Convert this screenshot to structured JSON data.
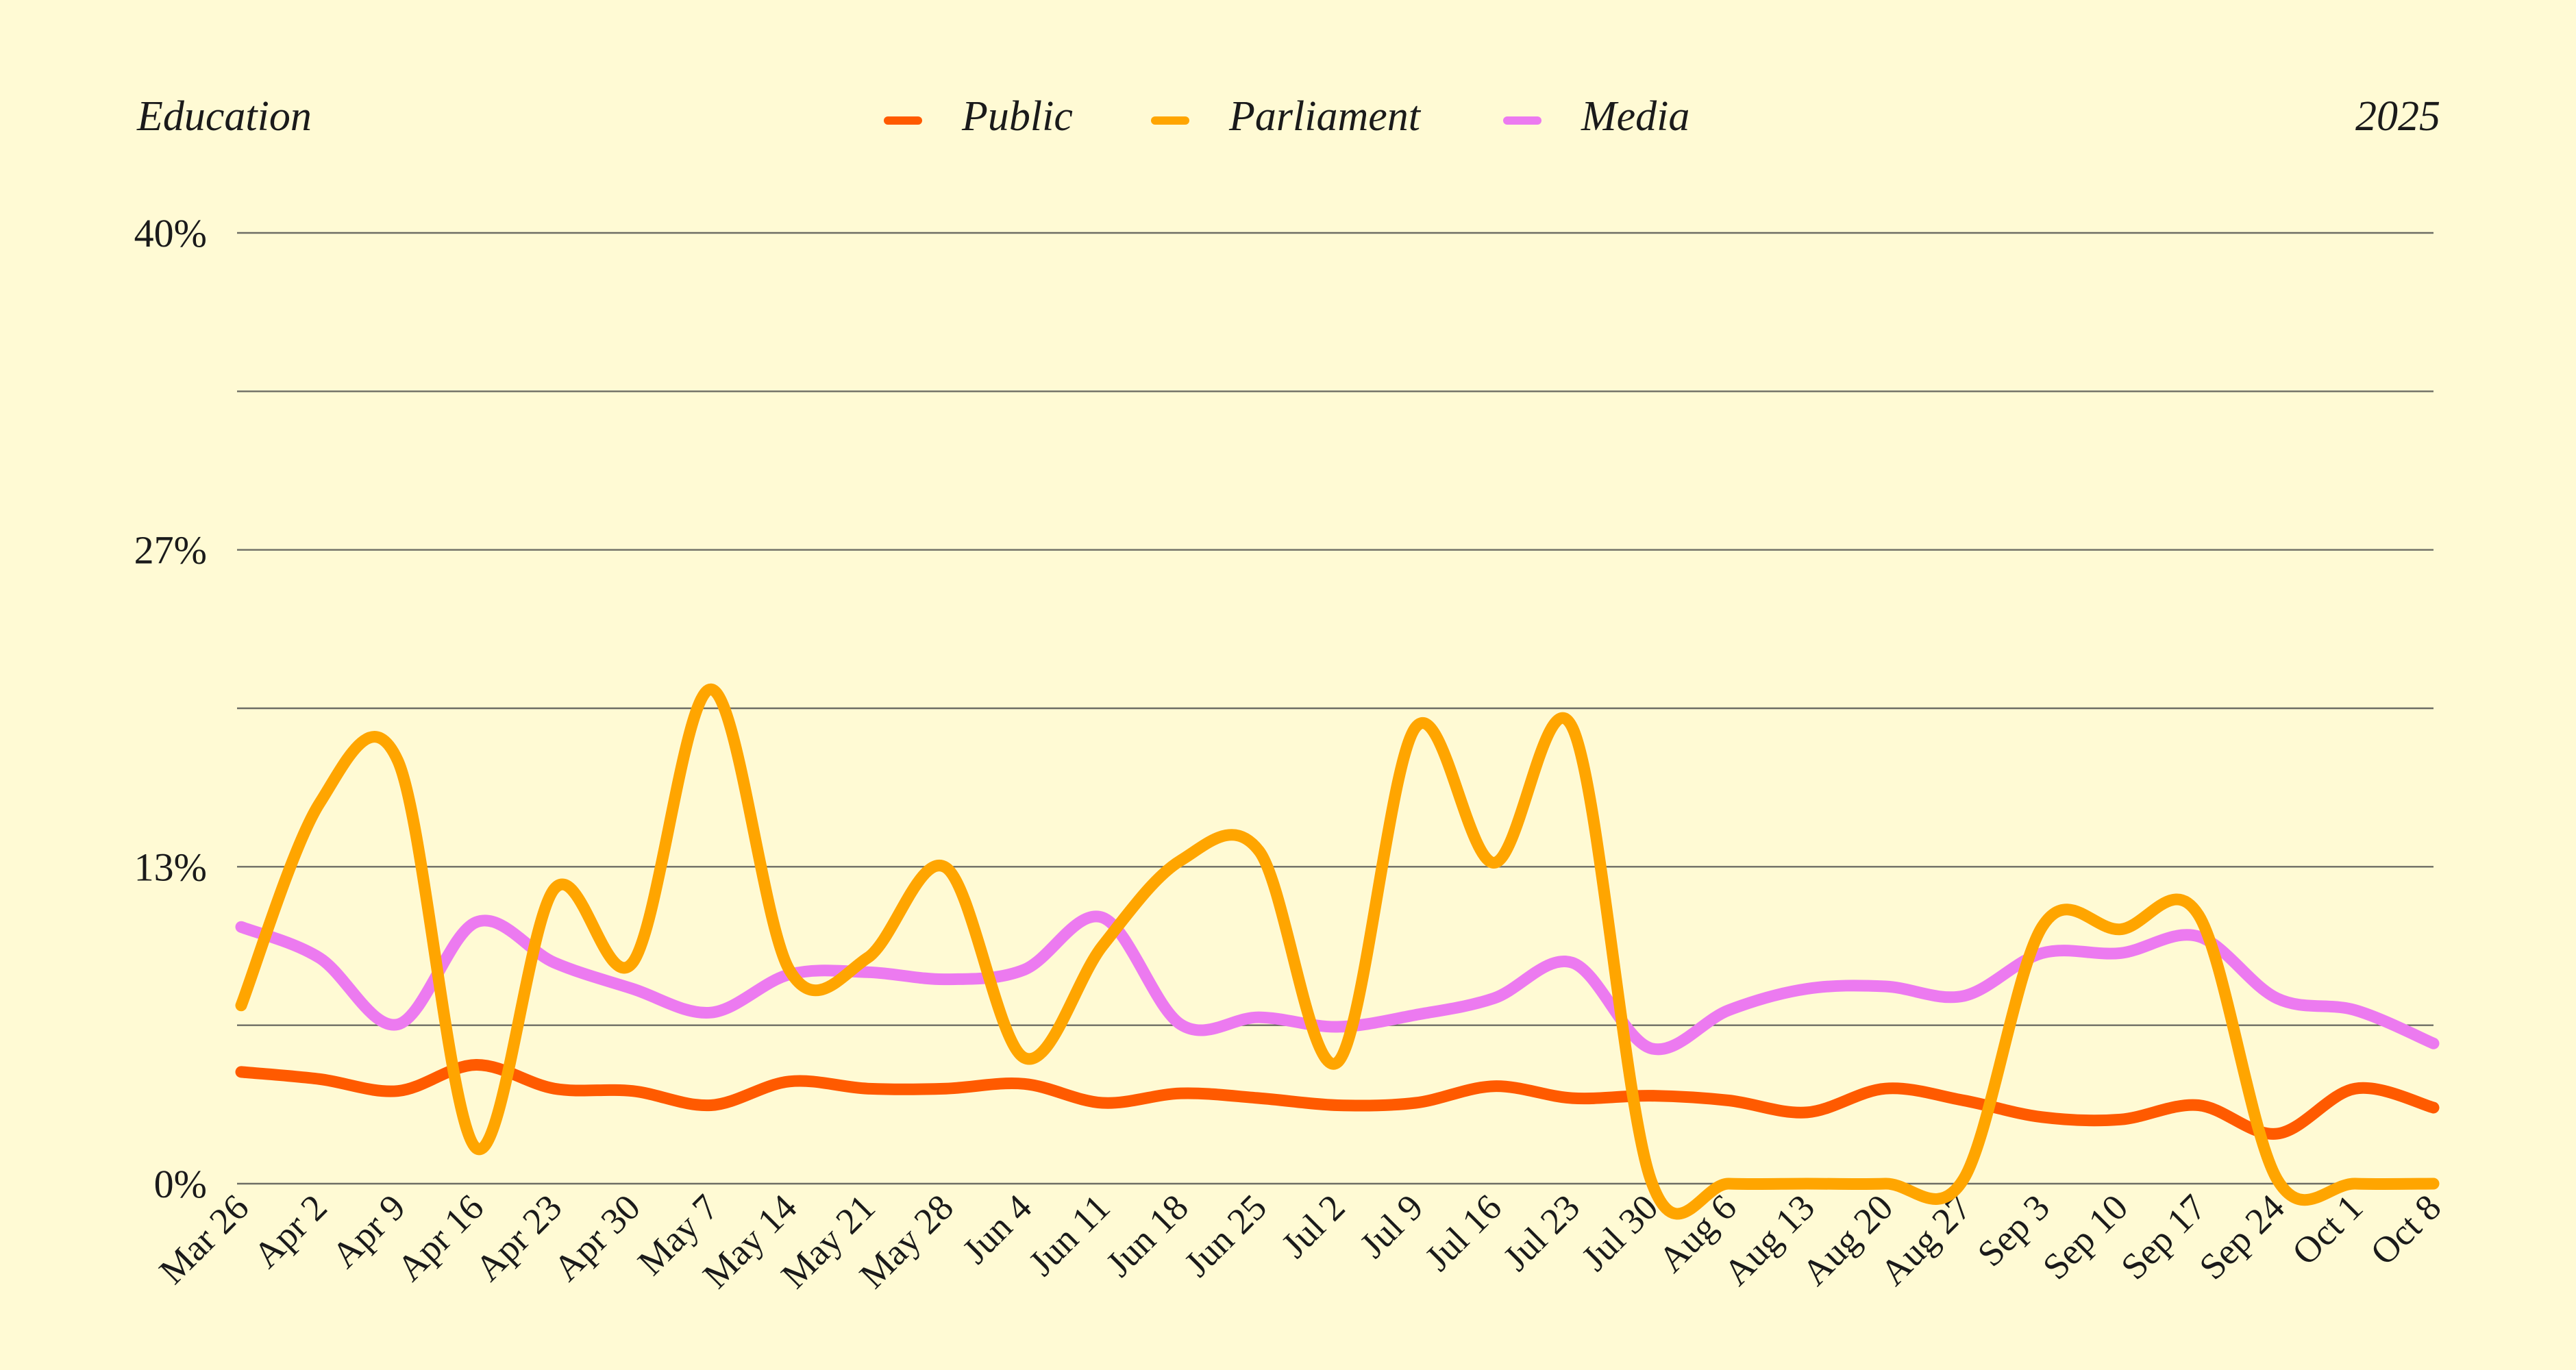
{
  "header": {
    "left_label": "Education",
    "right_label": "2025"
  },
  "colors": {
    "background": "#fffad4",
    "gridline": "#6d6d64",
    "text": "#1a1a1a"
  },
  "chart_data": {
    "type": "line",
    "title": "Education",
    "subtitle": "2025",
    "xlabel": "",
    "ylabel": "",
    "ylim": [
      0,
      40
    ],
    "y_ticks": [
      {
        "value": 0,
        "label": "0%"
      },
      {
        "value": 13.333,
        "label": "13%"
      },
      {
        "value": 26.667,
        "label": "27%"
      },
      {
        "value": 40,
        "label": "40%"
      }
    ],
    "y_gridlines": [
      0,
      6.667,
      13.333,
      20,
      26.667,
      33.333,
      40
    ],
    "legend_position": "top-center",
    "grid": true,
    "categories": [
      "Mar 26",
      "Apr 2",
      "Apr 9",
      "Apr 16",
      "Apr 23",
      "Apr 30",
      "May 7",
      "May 14",
      "May 21",
      "May 28",
      "Jun 4",
      "Jun 11",
      "Jun 18",
      "Jun 25",
      "Jul 2",
      "Jul 9",
      "Jul 16",
      "Jul 23",
      "Jul 30",
      "Aug 6",
      "Aug 13",
      "Aug 20",
      "Aug 27",
      "Sep 3",
      "Sep 10",
      "Sep 17",
      "Sep 24",
      "Oct 1",
      "Oct 8"
    ],
    "series": [
      {
        "name": "Public",
        "color": "#ff5a00",
        "values": [
          4.7,
          4.4,
          3.9,
          5.0,
          4.0,
          3.9,
          3.3,
          4.3,
          4.0,
          4.0,
          4.2,
          3.4,
          3.8,
          3.6,
          3.3,
          3.4,
          4.1,
          3.6,
          3.7,
          3.5,
          3.0,
          4.0,
          3.5,
          2.8,
          2.7,
          3.3,
          2.1,
          4.0,
          3.2
        ]
      },
      {
        "name": "Parliament",
        "color": "#ffa500",
        "values": [
          7.5,
          16.0,
          17.8,
          1.5,
          12.4,
          9.3,
          20.8,
          9.0,
          9.5,
          13.3,
          5.3,
          10.0,
          13.6,
          14.0,
          5.1,
          19.2,
          13.5,
          19.2,
          0.2,
          0.0,
          0.0,
          0.0,
          0.2,
          10.8,
          10.7,
          11.3,
          0.2,
          0.0,
          0.0
        ]
      },
      {
        "name": "Media",
        "color": "#ec7af0",
        "values": [
          10.8,
          9.5,
          6.7,
          11.0,
          9.3,
          8.2,
          7.2,
          8.8,
          8.9,
          8.6,
          9.0,
          11.2,
          6.7,
          7.0,
          6.6,
          7.1,
          7.8,
          9.3,
          5.7,
          7.3,
          8.2,
          8.3,
          7.9,
          9.7,
          9.7,
          10.4,
          7.8,
          7.3,
          5.9
        ]
      }
    ]
  }
}
